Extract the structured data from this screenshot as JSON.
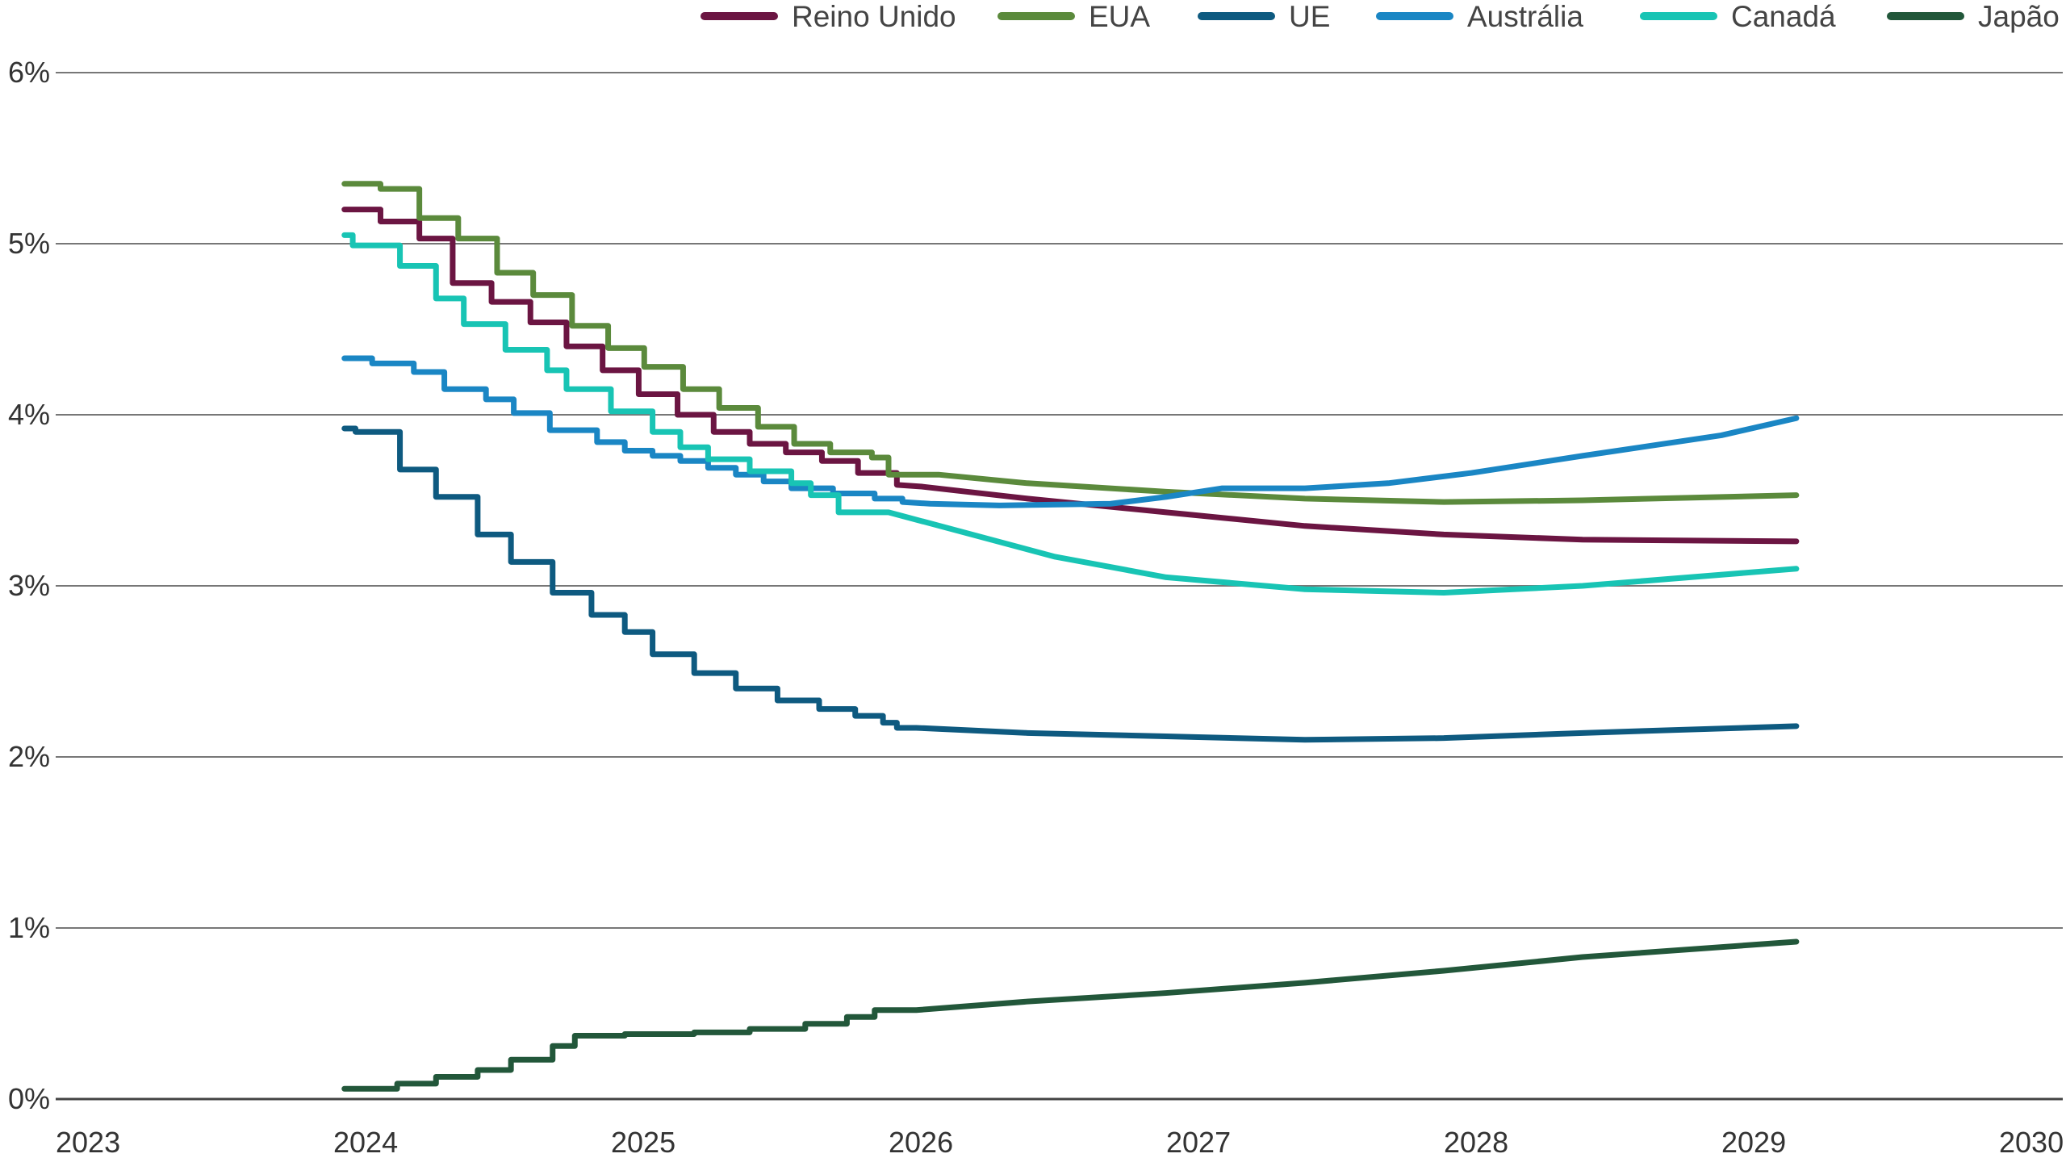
{
  "chart_data": {
    "type": "line",
    "title": "",
    "xlabel": "",
    "ylabel": "",
    "xlim": [
      2023,
      2030
    ],
    "ylim": [
      0,
      6
    ],
    "x_ticks": [
      "2023",
      "2024",
      "2025",
      "2026",
      "2027",
      "2028",
      "2029",
      "2030"
    ],
    "y_ticks": [
      "0%",
      "1%",
      "2%",
      "3%",
      "4%",
      "5%",
      "6%"
    ],
    "grid": "horizontal",
    "legend_position": "top-right",
    "series": [
      {
        "name": "Reino Unido",
        "color": "#6b1542",
        "steps": [
          [
            2024.04,
            5.2
          ],
          [
            2024.17,
            5.13
          ],
          [
            2024.31,
            5.03
          ],
          [
            2024.43,
            4.77
          ],
          [
            2024.57,
            4.66
          ],
          [
            2024.71,
            4.54
          ],
          [
            2024.84,
            4.4
          ],
          [
            2024.97,
            4.26
          ],
          [
            2025.1,
            4.12
          ],
          [
            2025.24,
            4.0
          ],
          [
            2025.37,
            3.9
          ],
          [
            2025.5,
            3.83
          ],
          [
            2025.63,
            3.78
          ],
          [
            2025.76,
            3.73
          ],
          [
            2025.89,
            3.66
          ],
          [
            2026.03,
            3.59
          ]
        ],
        "curve": [
          [
            2026.12,
            3.58
          ],
          [
            2026.5,
            3.51
          ],
          [
            2027.0,
            3.43
          ],
          [
            2027.5,
            3.35
          ],
          [
            2028.0,
            3.3
          ],
          [
            2028.5,
            3.27
          ],
          [
            2029.27,
            3.26
          ]
        ]
      },
      {
        "name": "EUA",
        "color": "#5b8a3c",
        "steps": [
          [
            2024.04,
            5.35
          ],
          [
            2024.17,
            5.32
          ],
          [
            2024.31,
            5.15
          ],
          [
            2024.45,
            5.03
          ],
          [
            2024.59,
            4.83
          ],
          [
            2024.72,
            4.7
          ],
          [
            2024.86,
            4.52
          ],
          [
            2024.99,
            4.39
          ],
          [
            2025.12,
            4.28
          ],
          [
            2025.26,
            4.15
          ],
          [
            2025.39,
            4.04
          ],
          [
            2025.53,
            3.93
          ],
          [
            2025.66,
            3.83
          ],
          [
            2025.79,
            3.78
          ],
          [
            2025.94,
            3.75
          ],
          [
            2026.0,
            3.65
          ]
        ],
        "curve": [
          [
            2026.18,
            3.65
          ],
          [
            2026.5,
            3.6
          ],
          [
            2027.0,
            3.55
          ],
          [
            2027.5,
            3.51
          ],
          [
            2028.0,
            3.49
          ],
          [
            2028.5,
            3.5
          ],
          [
            2029.27,
            3.53
          ]
        ]
      },
      {
        "name": "UE",
        "color": "#0e5a80",
        "steps": [
          [
            2024.04,
            3.92
          ],
          [
            2024.08,
            3.9
          ],
          [
            2024.24,
            3.68
          ],
          [
            2024.37,
            3.52
          ],
          [
            2024.52,
            3.3
          ],
          [
            2024.64,
            3.14
          ],
          [
            2024.79,
            2.96
          ],
          [
            2024.93,
            2.83
          ],
          [
            2025.05,
            2.73
          ],
          [
            2025.15,
            2.6
          ],
          [
            2025.3,
            2.49
          ],
          [
            2025.45,
            2.4
          ],
          [
            2025.6,
            2.33
          ],
          [
            2025.75,
            2.28
          ],
          [
            2025.88,
            2.24
          ],
          [
            2025.98,
            2.2
          ],
          [
            2026.03,
            2.17
          ]
        ],
        "curve": [
          [
            2026.1,
            2.17
          ],
          [
            2026.5,
            2.14
          ],
          [
            2027.0,
            2.12
          ],
          [
            2027.5,
            2.1
          ],
          [
            2028.0,
            2.11
          ],
          [
            2028.5,
            2.14
          ],
          [
            2029.27,
            2.18
          ]
        ]
      },
      {
        "name": "Austrália",
        "color": "#1a86c4",
        "steps": [
          [
            2024.04,
            4.33
          ],
          [
            2024.14,
            4.3
          ],
          [
            2024.29,
            4.25
          ],
          [
            2024.4,
            4.15
          ],
          [
            2024.55,
            4.09
          ],
          [
            2024.65,
            4.01
          ],
          [
            2024.78,
            3.91
          ],
          [
            2024.95,
            3.84
          ],
          [
            2025.05,
            3.79
          ],
          [
            2025.15,
            3.76
          ],
          [
            2025.25,
            3.73
          ],
          [
            2025.35,
            3.69
          ],
          [
            2025.45,
            3.65
          ],
          [
            2025.55,
            3.61
          ],
          [
            2025.65,
            3.57
          ],
          [
            2025.8,
            3.54
          ],
          [
            2025.95,
            3.51
          ],
          [
            2026.05,
            3.49
          ]
        ],
        "curve": [
          [
            2026.15,
            3.48
          ],
          [
            2026.4,
            3.47
          ],
          [
            2026.8,
            3.48
          ],
          [
            2027.0,
            3.52
          ],
          [
            2027.2,
            3.57
          ],
          [
            2027.5,
            3.57
          ],
          [
            2027.8,
            3.6
          ],
          [
            2028.1,
            3.66
          ],
          [
            2028.5,
            3.76
          ],
          [
            2029.0,
            3.88
          ],
          [
            2029.27,
            3.98
          ]
        ]
      },
      {
        "name": "Canadá",
        "color": "#18c4b4",
        "steps": [
          [
            2024.04,
            5.05
          ],
          [
            2024.07,
            4.99
          ],
          [
            2024.24,
            4.87
          ],
          [
            2024.37,
            4.68
          ],
          [
            2024.47,
            4.53
          ],
          [
            2024.62,
            4.38
          ],
          [
            2024.77,
            4.26
          ],
          [
            2024.84,
            4.15
          ],
          [
            2025.0,
            4.02
          ],
          [
            2025.15,
            3.9
          ],
          [
            2025.25,
            3.81
          ],
          [
            2025.35,
            3.74
          ],
          [
            2025.5,
            3.67
          ],
          [
            2025.65,
            3.6
          ],
          [
            2025.72,
            3.53
          ],
          [
            2025.82,
            3.43
          ]
        ],
        "curve": [
          [
            2026.0,
            3.43
          ],
          [
            2026.3,
            3.3
          ],
          [
            2026.6,
            3.17
          ],
          [
            2027.0,
            3.05
          ],
          [
            2027.5,
            2.98
          ],
          [
            2028.0,
            2.96
          ],
          [
            2028.5,
            3.0
          ],
          [
            2029.27,
            3.1
          ]
        ]
      },
      {
        "name": "Japão",
        "color": "#22573a",
        "steps": [
          [
            2024.04,
            0.06
          ],
          [
            2024.23,
            0.09
          ],
          [
            2024.37,
            0.13
          ],
          [
            2024.52,
            0.17
          ],
          [
            2024.64,
            0.23
          ],
          [
            2024.79,
            0.31
          ],
          [
            2024.87,
            0.37
          ],
          [
            2025.05,
            0.38
          ],
          [
            2025.3,
            0.39
          ],
          [
            2025.5,
            0.41
          ],
          [
            2025.7,
            0.44
          ],
          [
            2025.85,
            0.48
          ],
          [
            2025.95,
            0.52
          ]
        ],
        "curve": [
          [
            2026.1,
            0.52
          ],
          [
            2026.5,
            0.57
          ],
          [
            2027.0,
            0.62
          ],
          [
            2027.5,
            0.68
          ],
          [
            2028.0,
            0.75
          ],
          [
            2028.5,
            0.83
          ],
          [
            2029.27,
            0.92
          ]
        ]
      }
    ]
  }
}
